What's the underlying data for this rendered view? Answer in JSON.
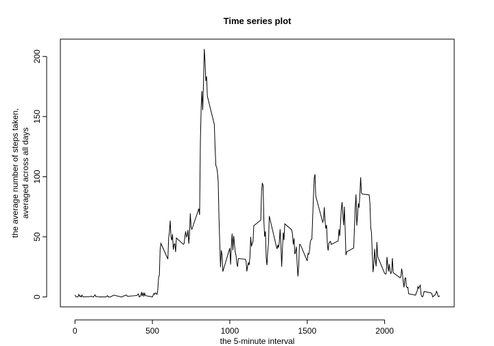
{
  "chart_data": {
    "type": "line",
    "title": "Time series plot",
    "xlabel": "the 5-minute interval",
    "ylabel": [
      "the average number of steps taken,",
      "averaged across all days"
    ],
    "x": [
      0,
      5,
      10,
      20,
      25,
      30,
      35,
      40,
      45,
      50,
      55,
      100,
      105,
      110,
      120,
      125,
      130,
      135,
      145,
      155,
      200,
      210,
      215,
      230,
      250,
      300,
      330,
      340,
      400,
      410,
      415,
      425,
      430,
      435,
      440,
      445,
      450,
      455,
      500,
      510,
      515,
      520,
      525,
      530,
      535,
      540,
      545,
      550,
      555,
      600,
      605,
      610,
      615,
      620,
      625,
      630,
      635,
      640,
      645,
      650,
      655,
      700,
      705,
      710,
      715,
      720,
      725,
      730,
      735,
      740,
      745,
      750,
      755,
      800,
      805,
      810,
      815,
      820,
      825,
      830,
      835,
      840,
      845,
      850,
      855,
      900,
      905,
      910,
      915,
      920,
      925,
      930,
      935,
      940,
      945,
      950,
      955,
      1000,
      1005,
      1010,
      1015,
      1020,
      1025,
      1030,
      1035,
      1040,
      1045,
      1050,
      1055,
      1100,
      1105,
      1110,
      1115,
      1120,
      1125,
      1130,
      1135,
      1140,
      1145,
      1150,
      1155,
      1200,
      1205,
      1210,
      1215,
      1220,
      1225,
      1230,
      1235,
      1240,
      1245,
      1250,
      1255,
      1300,
      1305,
      1310,
      1315,
      1320,
      1325,
      1330,
      1335,
      1340,
      1345,
      1350,
      1355,
      1400,
      1405,
      1410,
      1415,
      1420,
      1425,
      1430,
      1435,
      1440,
      1445,
      1450,
      1455,
      1500,
      1505,
      1510,
      1515,
      1520,
      1525,
      1530,
      1535,
      1540,
      1545,
      1550,
      1555,
      1600,
      1605,
      1610,
      1615,
      1620,
      1625,
      1630,
      1635,
      1640,
      1645,
      1650,
      1655,
      1700,
      1705,
      1710,
      1715,
      1720,
      1725,
      1730,
      1735,
      1740,
      1745,
      1750,
      1755,
      1800,
      1805,
      1810,
      1815,
      1820,
      1825,
      1830,
      1835,
      1840,
      1845,
      1850,
      1855,
      1900,
      1905,
      1910,
      1915,
      1920,
      1925,
      1930,
      1935,
      1940,
      1945,
      1950,
      1955,
      2000,
      2005,
      2010,
      2015,
      2020,
      2025,
      2030,
      2035,
      2040,
      2045,
      2050,
      2055,
      2100,
      2105,
      2110,
      2115,
      2120,
      2125,
      2130,
      2135,
      2140,
      2145,
      2150,
      2155,
      2200,
      2205,
      2210,
      2215,
      2220,
      2225,
      2230,
      2235,
      2240,
      2245,
      2250,
      2255,
      2300,
      2305,
      2310,
      2315,
      2320,
      2325,
      2330,
      2335,
      2340,
      2345,
      2350,
      2355
    ],
    "values": [
      1.7,
      0.3,
      0.1,
      0.1,
      2.1,
      0.5,
      0.9,
      0,
      1.5,
      0.3,
      0.1,
      0.3,
      0.7,
      0.2,
      0,
      1.1,
      1.8,
      0.2,
      0.4,
      0,
      0,
      1.1,
      0,
      0,
      1.5,
      0,
      1.6,
      0.5,
      1.2,
      2.6,
      0,
      0.9,
      4.1,
      0.7,
      3.5,
      0.8,
      3.1,
      1.1,
      0,
      3.0,
      2.2,
      3.3,
      3.0,
      2.1,
      6.1,
      16,
      18.3,
      39.5,
      44.5,
      31.5,
      49.3,
      53.8,
      63.5,
      50,
      47.1,
      52.2,
      39.3,
      44.0,
      44.2,
      37.4,
      49.0,
      43.8,
      44.4,
      50.5,
      54.5,
      49.9,
      51.0,
      55.7,
      44.3,
      52.3,
      69.5,
      57.8,
      56.2,
      73.4,
      68.2,
      129.4,
      157.5,
      171.2,
      155.4,
      177.3,
      206.2,
      195.9,
      179.6,
      183.4,
      167.0,
      143.5,
      124.0,
      109.1,
      108.1,
      103.7,
      95.97,
      66.2,
      45.2,
      24.8,
      38.8,
      35.0,
      21.1,
      40.6,
      26.98,
      42.4,
      52.7,
      38.9,
      50.8,
      44.3,
      37.4,
      34.7,
      28.3,
      25.1,
      31.9,
      31.4,
      29.7,
      21.3,
      25.5,
      28.4,
      26.5,
      33.4,
      50.0,
      42.0,
      44.6,
      46.0,
      59.2,
      63.9,
      87.7,
      94.8,
      92.8,
      63.4,
      50.2,
      54.5,
      32.4,
      26.5,
      37.7,
      45.1,
      67.3,
      42.3,
      39.9,
      43.3,
      40.98,
      46.2,
      56.4,
      42.8,
      25.1,
      39.97,
      53.5,
      47.3,
      60.8,
      55.8,
      51.96,
      43.6,
      48.7,
      35.5,
      37.5,
      41.8,
      27.5,
      17.1,
      26.1,
      43.6,
      43.8,
      30.0,
      36.1,
      35.5,
      38.8,
      45.96,
      47.8,
      48.1,
      65.3,
      82.9,
      98.7,
      102.1,
      83.96,
      62.1,
      64.1,
      74.5,
      63.2,
      56.9,
      59.8,
      43.9,
      38.6,
      44.7,
      45.5,
      46.2,
      43.7,
      46.6,
      56.3,
      50.7,
      61.2,
      72.7,
      78.9,
      68.9,
      59.7,
      75.1,
      56.5,
      34.8,
      37.5,
      40.7,
      58.0,
      74.7,
      85.3,
      59.3,
      67.8,
      77.7,
      74.2,
      85.3,
      99.5,
      86.6,
      85.6,
      84.9,
      77.8,
      58.0,
      53.4,
      36.3,
      20.7,
      27.4,
      40.0,
      30.2,
      25.5,
      45.7,
      33.5,
      19.6,
      19.0,
      19.3,
      33.3,
      26.8,
      21.2,
      27.3,
      21.3,
      19.5,
      21.3,
      32.3,
      20.2,
      15.9,
      17.2,
      23.5,
      19.2,
      12.5,
      8.0,
      14.7,
      16.3,
      8.7,
      7.8,
      8.1,
      2.6,
      1.5,
      3.7,
      4.8,
      8.5,
      7.1,
      8.7,
      9.8,
      2.2,
      0.3,
      0.1,
      1.6,
      4.6,
      3.3,
      2.8,
      0,
      0.8,
      0.96,
      1.6,
      2.6,
      4.7,
      3.3,
      0.6,
      0.2,
      1.1
    ],
    "color": "#000000",
    "xlim": [
      -94.2,
      2449.2
    ],
    "ylim": [
      -8.25,
      214.42
    ],
    "xticks": [
      0,
      500,
      1000,
      1500,
      2000
    ],
    "yticks": [
      0,
      50,
      100,
      150,
      200
    ]
  }
}
